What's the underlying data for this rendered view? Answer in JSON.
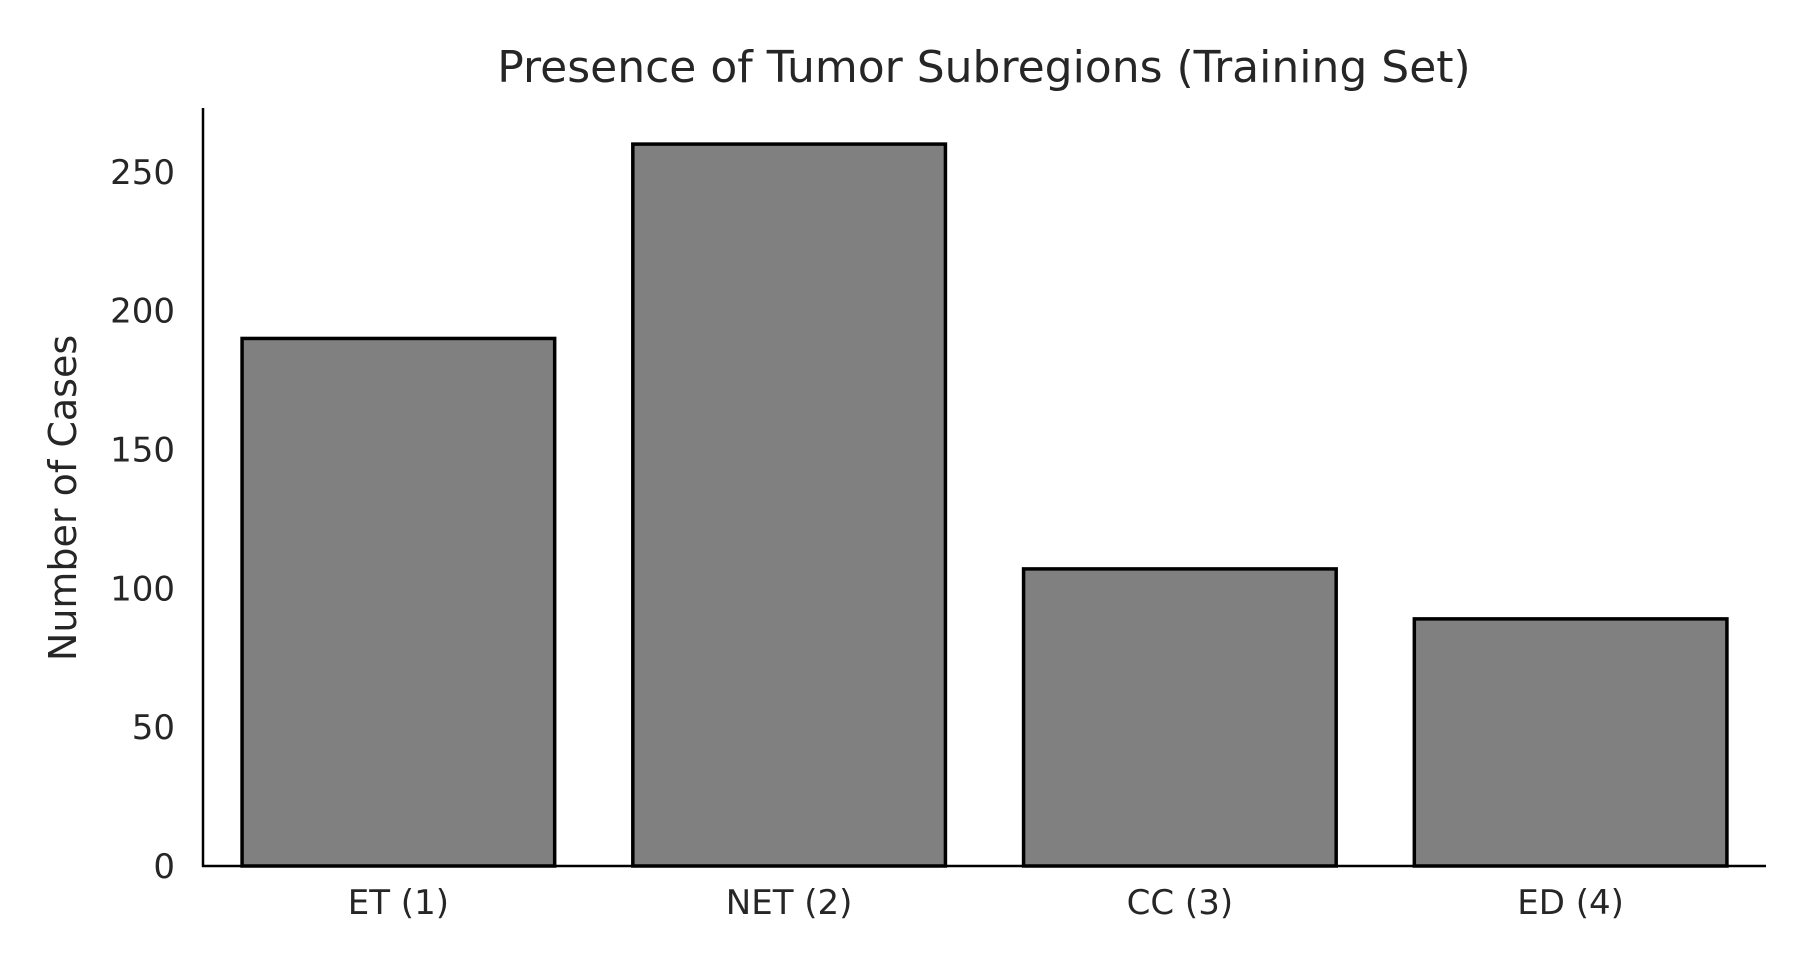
{
  "chart_data": {
    "type": "bar",
    "title": "Presence of Tumor Subregions (Training Set)",
    "xlabel": "",
    "ylabel": "Number of Cases",
    "categories": [
      "ET (1)",
      "NET (2)",
      "CC (3)",
      "ED (4)"
    ],
    "values": [
      190,
      260,
      107,
      89
    ],
    "yticks": [
      0,
      50,
      100,
      150,
      200,
      250
    ],
    "ylim": [
      0,
      273
    ],
    "grid": false,
    "legend": "none",
    "bar_color": "#808080",
    "edge_color": "#000000"
  }
}
